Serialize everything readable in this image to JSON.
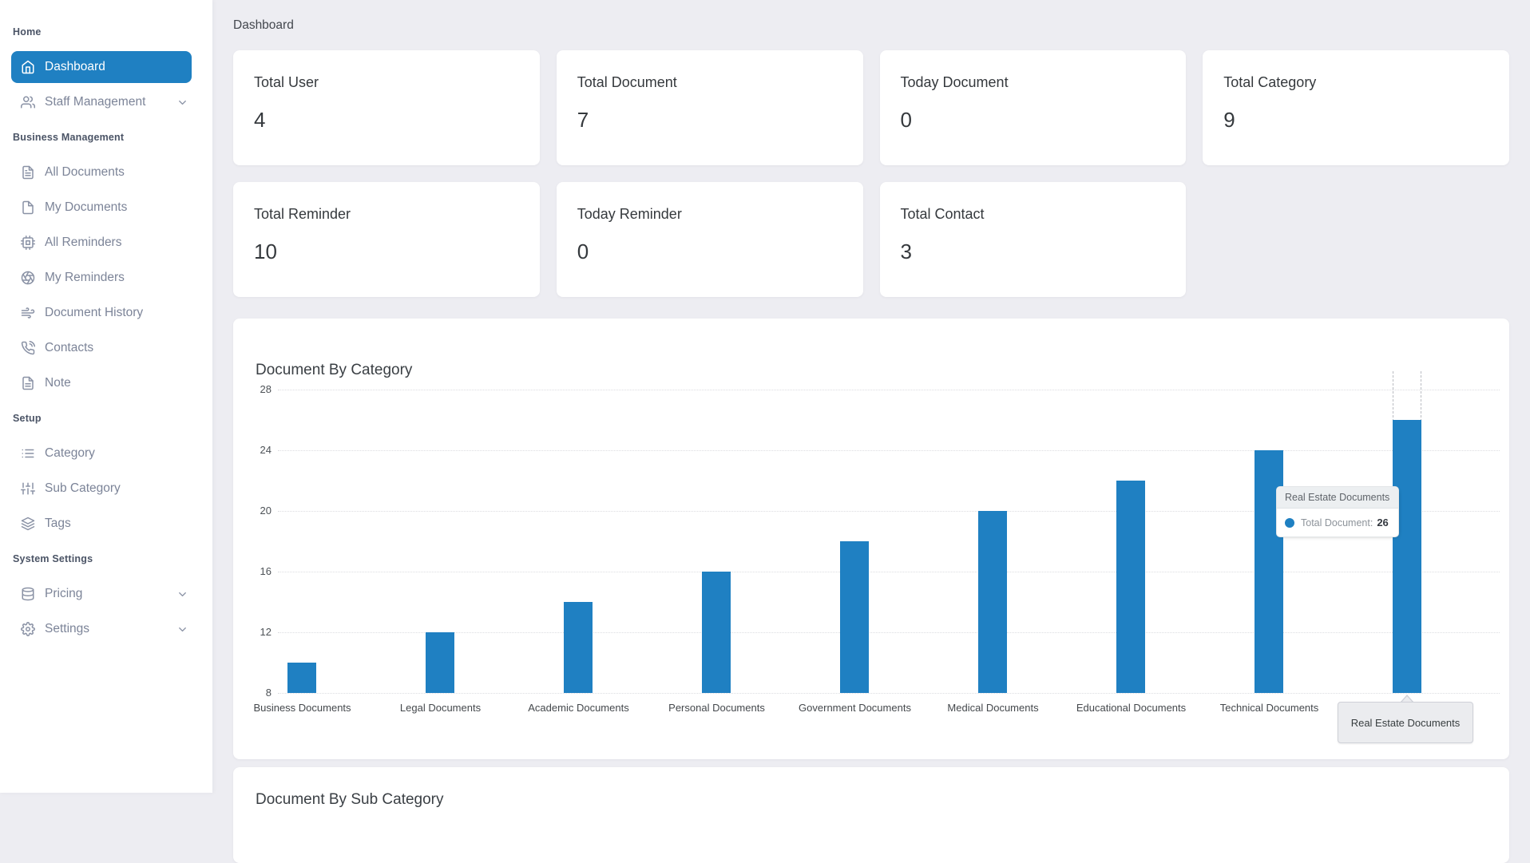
{
  "app": {
    "breadcrumb": "Dashboard"
  },
  "colors": {
    "accent": "#1f80c2",
    "bar": "#1f80c2",
    "background": "#ededf2",
    "sidebar": "#ffffff"
  },
  "sidebar": {
    "sections": [
      {
        "label": "Home",
        "items": [
          {
            "label": "Dashboard",
            "icon": "home-icon",
            "active": true
          },
          {
            "label": "Staff Management",
            "icon": "users-icon",
            "expandable": true
          }
        ]
      },
      {
        "label": "Business Management",
        "items": [
          {
            "label": "All Documents",
            "icon": "document-lines-icon"
          },
          {
            "label": "My Documents",
            "icon": "document-icon"
          },
          {
            "label": "All Reminders",
            "icon": "cpu-icon"
          },
          {
            "label": "My Reminders",
            "icon": "aperture-icon"
          },
          {
            "label": "Document History",
            "icon": "wind-icon"
          },
          {
            "label": "Contacts",
            "icon": "phone-icon"
          },
          {
            "label": "Note",
            "icon": "note-icon"
          }
        ]
      },
      {
        "label": "Setup",
        "items": [
          {
            "label": "Category",
            "icon": "list-icon"
          },
          {
            "label": "Sub Category",
            "icon": "sliders-icon"
          },
          {
            "label": "Tags",
            "icon": "layers-icon"
          }
        ]
      },
      {
        "label": "System Settings",
        "items": [
          {
            "label": "Pricing",
            "icon": "database-icon",
            "expandable": true
          },
          {
            "label": "Settings",
            "icon": "gear-icon",
            "expandable": true
          }
        ]
      }
    ]
  },
  "stats": {
    "row1": [
      {
        "label": "Total User",
        "value": "4"
      },
      {
        "label": "Total Document",
        "value": "7"
      },
      {
        "label": "Today Document",
        "value": "0"
      },
      {
        "label": "Total Category",
        "value": "9"
      }
    ],
    "row2": [
      {
        "label": "Total Reminder",
        "value": "10"
      },
      {
        "label": "Today Reminder",
        "value": "0"
      },
      {
        "label": "Total Contact",
        "value": "3"
      }
    ]
  },
  "chart_data": {
    "type": "bar",
    "title": "Document By Category",
    "categories": [
      "Business Documents",
      "Legal Documents",
      "Academic Documents",
      "Personal Documents",
      "Government Documents",
      "Medical Documents",
      "Educational Documents",
      "Technical Documents",
      "Real Estate Documents"
    ],
    "series": [
      {
        "name": "Total Document",
        "values": [
          10,
          12,
          14,
          16,
          18,
          20,
          22,
          24,
          26
        ]
      }
    ],
    "ylim": [
      8,
      28
    ],
    "yticks": [
      28,
      24,
      20,
      16,
      12,
      8
    ],
    "grid": "dotted-horizontal",
    "legend": "none",
    "bar_color": "#1f80c2",
    "hovered_category": "Real Estate Documents"
  },
  "tooltip": {
    "title": "Real Estate Documents",
    "series_label": "Total Document:",
    "value": "26"
  },
  "xaxis_hover": {
    "label": "Real Estate Documents"
  },
  "subchart": {
    "title": "Document By Sub Category"
  }
}
